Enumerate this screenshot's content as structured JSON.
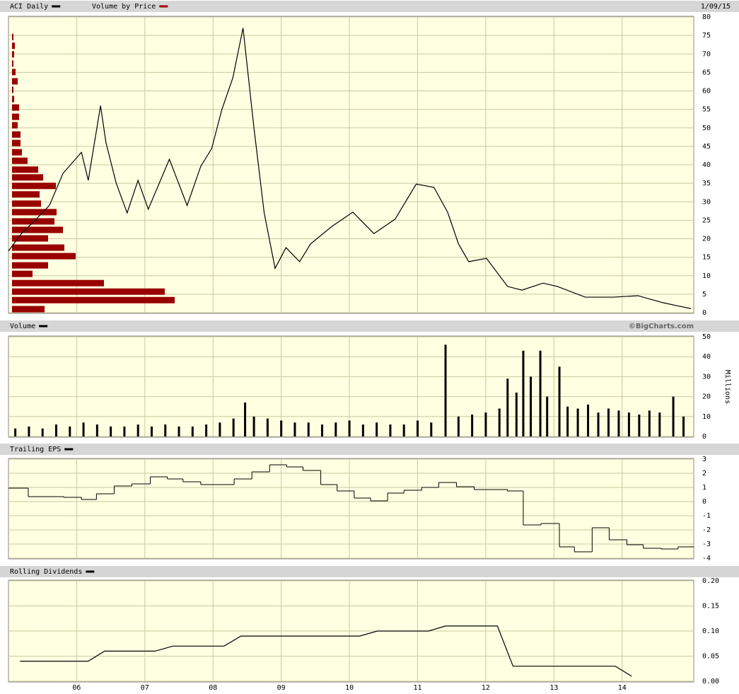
{
  "chart_data": [
    {
      "type": "price",
      "date": "1/09/15",
      "xlim": [
        2005.0,
        2015.05
      ],
      "ylim": [
        0,
        80
      ],
      "yticks": [
        0,
        5,
        10,
        15,
        20,
        25,
        30,
        35,
        40,
        45,
        50,
        55,
        60,
        65,
        70,
        75,
        80
      ],
      "grid": true,
      "series": [
        {
          "name": "ACI Daily",
          "color": "#000000",
          "x": [
            2005.0,
            2005.19,
            2005.39,
            2005.6,
            2005.8,
            2006.07,
            2006.17,
            2006.35,
            2006.43,
            2006.58,
            2006.74,
            2006.9,
            2007.05,
            2007.36,
            2007.62,
            2007.82,
            2007.98,
            2008.13,
            2008.29,
            2008.44,
            2008.6,
            2008.75,
            2008.91,
            2009.07,
            2009.27,
            2009.43,
            2009.74,
            2010.05,
            2010.36,
            2010.67,
            2010.98,
            2011.24,
            2011.44,
            2011.6,
            2011.75,
            2012.01,
            2012.32,
            2012.53,
            2012.84,
            2013.05,
            2013.46,
            2013.87,
            2014.23,
            2014.6,
            2014.8,
            2015.01
          ],
          "values": [
            16.7,
            21.4,
            25,
            29,
            37.7,
            43.4,
            35.8,
            56,
            46,
            35,
            27,
            35.8,
            28,
            41.5,
            29,
            39.6,
            44.4,
            55,
            63.5,
            77,
            50,
            27,
            12,
            17.6,
            13.8,
            18.6,
            23.3,
            27.2,
            21.4,
            25.3,
            34.8,
            33.9,
            27.2,
            18.6,
            13.8,
            14.7,
            7.1,
            6.1,
            8,
            7.1,
            4.2,
            4.2,
            4.6,
            2.7,
            1.9,
            1.1
          ]
        }
      ],
      "volume_by_price": {
        "name": "Volume by Price",
        "color": "#990000",
        "price_levels": [
          0.96,
          3.4,
          5.7,
          8.0,
          10.5,
          12.8,
          15.3,
          17.6,
          20.1,
          22.4,
          24.7,
          27.2,
          29.5,
          32.0,
          34.3,
          36.6,
          38.7,
          41.1,
          43.4,
          45.9,
          48.2,
          50.7,
          53.0,
          55.5,
          57.8,
          60.3,
          62.6,
          65.1,
          67.4,
          69.9,
          72.2,
          74.6
        ],
        "values": [
          46,
          230,
          216,
          130,
          29,
          51,
          90,
          74,
          51,
          72,
          60,
          63,
          41,
          39,
          62,
          44,
          37,
          22,
          14,
          12,
          12,
          8,
          10,
          10,
          3,
          2,
          8,
          5,
          2,
          3,
          4,
          2
        ]
      }
    },
    {
      "type": "bar",
      "credit": "©BigCharts.com",
      "y_label": "Millions",
      "xlim": [
        2005.0,
        2015.05
      ],
      "ylim": [
        0,
        50
      ],
      "yticks": [
        0,
        10,
        20,
        30,
        40,
        50
      ],
      "grid": true,
      "series": [
        {
          "name": "Volume",
          "color": "#000000",
          "x": [
            2005.1,
            2005.3,
            2005.5,
            2005.7,
            2005.9,
            2006.1,
            2006.3,
            2006.5,
            2006.7,
            2006.9,
            2007.1,
            2007.3,
            2007.5,
            2007.7,
            2007.9,
            2008.1,
            2008.3,
            2008.47,
            2008.6,
            2008.8,
            2009.0,
            2009.2,
            2009.4,
            2009.6,
            2009.8,
            2010.0,
            2010.2,
            2010.4,
            2010.6,
            2010.8,
            2011.0,
            2011.2,
            2011.41,
            2011.6,
            2011.8,
            2012.0,
            2012.2,
            2012.32,
            2012.45,
            2012.55,
            2012.66,
            2012.8,
            2012.9,
            2013.08,
            2013.2,
            2013.35,
            2013.5,
            2013.65,
            2013.8,
            2013.95,
            2014.1,
            2014.25,
            2014.4,
            2014.55,
            2014.75,
            2014.9
          ],
          "values": [
            4,
            5,
            4,
            6,
            5,
            7,
            6,
            5,
            5,
            6,
            5,
            6,
            5,
            5,
            6,
            7,
            9,
            17,
            10,
            9,
            8,
            7,
            7,
            6,
            7,
            8,
            6,
            7,
            6,
            6,
            8,
            7,
            46,
            10,
            11,
            12,
            14,
            29,
            22,
            43,
            30,
            43,
            20,
            35,
            15,
            14,
            16,
            12,
            14,
            13,
            12,
            11,
            13,
            12,
            20,
            10
          ]
        }
      ]
    },
    {
      "type": "step",
      "xlim": [
        2005.0,
        2015.05
      ],
      "ylim": [
        -4,
        3
      ],
      "yticks": [
        -4,
        -3,
        -2,
        -1,
        0,
        1,
        2,
        3
      ],
      "grid": true,
      "series": [
        {
          "name": "Trailing EPS",
          "color": "#000000",
          "x": [
            2005.0,
            2005.29,
            2005.81,
            2006.07,
            2006.29,
            2006.55,
            2006.81,
            2007.08,
            2007.33,
            2007.56,
            2007.82,
            2008.31,
            2008.57,
            2008.83,
            2009.08,
            2009.32,
            2009.58,
            2009.82,
            2010.07,
            2010.31,
            2010.56,
            2010.8,
            2011.06,
            2011.31,
            2011.57,
            2011.83,
            2012.32,
            2012.55,
            2012.81,
            2013.08,
            2013.3,
            2013.56,
            2013.81,
            2014.07,
            2014.31,
            2014.57,
            2014.82
          ],
          "values": [
            0.95,
            0.35,
            0.3,
            0.15,
            0.55,
            1.1,
            1.25,
            1.75,
            1.6,
            1.4,
            1.2,
            1.6,
            2.1,
            2.6,
            2.45,
            2.2,
            1.2,
            0.75,
            0.25,
            0.05,
            0.6,
            0.8,
            1.0,
            1.35,
            1.05,
            0.85,
            0.75,
            -1.65,
            -1.55,
            -3.2,
            -3.55,
            -1.85,
            -2.7,
            -3.05,
            -3.3,
            -3.35,
            -3.2
          ]
        }
      ]
    },
    {
      "type": "line",
      "xlim": [
        2005.0,
        2015.05
      ],
      "ylim": [
        0,
        0.2
      ],
      "yticks": [
        {
          "value": 0,
          "label": "0.00"
        },
        {
          "value": 0.05,
          "label": "0.05"
        },
        {
          "value": 0.1,
          "label": "0.10"
        },
        {
          "value": 0.15,
          "label": "0.15"
        },
        {
          "value": 0.2,
          "label": "0.20"
        }
      ],
      "xticks": [
        {
          "value": 2006,
          "label": "06"
        },
        {
          "value": 2007,
          "label": "07"
        },
        {
          "value": 2008,
          "label": "08"
        },
        {
          "value": 2009,
          "label": "09"
        },
        {
          "value": 2010,
          "label": "10"
        },
        {
          "value": 2011,
          "label": "11"
        },
        {
          "value": 2012,
          "label": "12"
        },
        {
          "value": 2013,
          "label": "13"
        },
        {
          "value": 2014,
          "label": "14"
        }
      ],
      "grid": true,
      "series": [
        {
          "name": "Rolling Dividends",
          "color": "#000000",
          "x": [
            2005.17,
            2006.17,
            2006.41,
            2007.15,
            2007.41,
            2008.16,
            2008.41,
            2010.15,
            2010.41,
            2011.16,
            2011.41,
            2012.17,
            2012.4,
            2013.9,
            2014.14
          ],
          "values": [
            0.04,
            0.04,
            0.06,
            0.06,
            0.07,
            0.07,
            0.09,
            0.09,
            0.1,
            0.1,
            0.11,
            0.11,
            0.03,
            0.03,
            0.01
          ]
        }
      ]
    }
  ]
}
